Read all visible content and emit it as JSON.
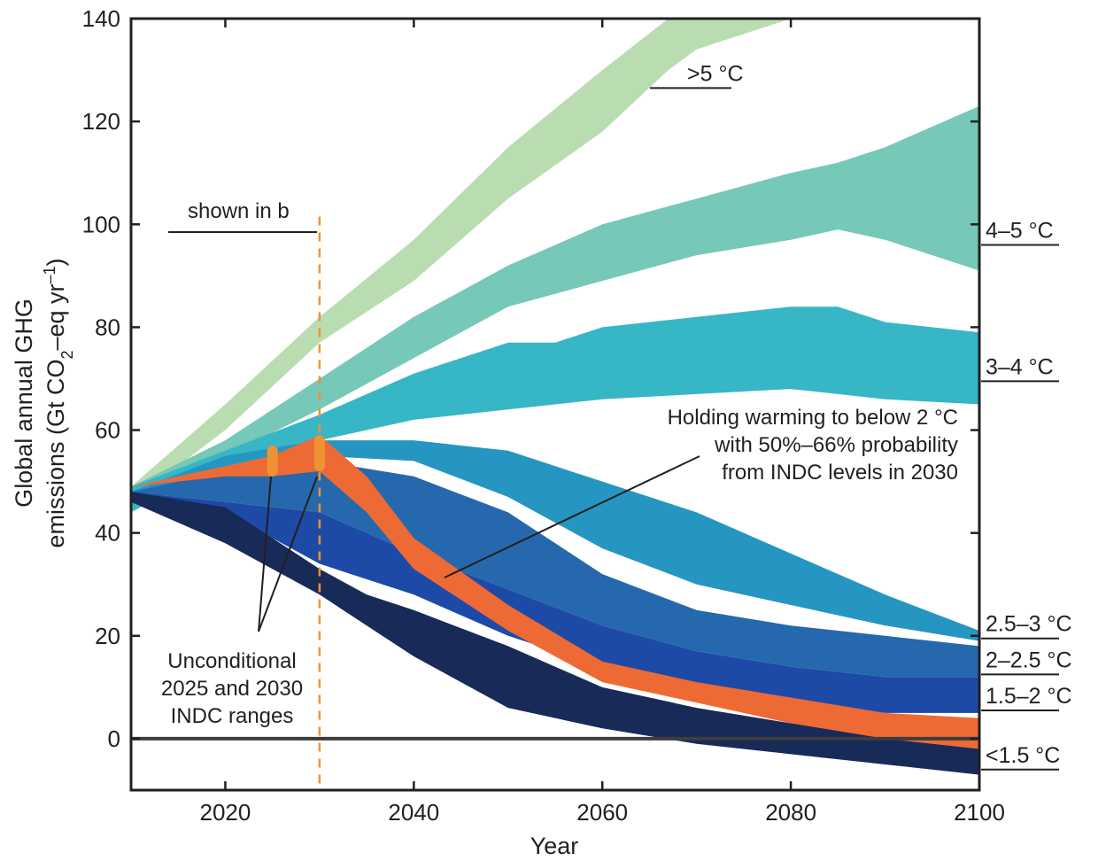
{
  "chart_data": {
    "type": "area",
    "xlabel": "Year",
    "ylabel_line1": "Global annual GHG",
    "ylabel_line2": "emissions (Gt CO",
    "ylabel_sub": "2",
    "ylabel_line2_end": "–eq yr",
    "ylabel_sup": "–1",
    "ylabel_close": ")",
    "xlim": [
      2010,
      2100
    ],
    "ylim": [
      -10,
      140
    ],
    "x_ticks": [
      "2020",
      "2040",
      "2060",
      "2080",
      "2100"
    ],
    "y_ticks": [
      "0",
      "20",
      "40",
      "60",
      "80",
      "100",
      "120",
      "140"
    ],
    "zero_line": true,
    "series": [
      {
        "name": ">5 °C",
        "color": "#b9ddb0",
        "x": [
          2010,
          2020,
          2030,
          2040,
          2050,
          2060,
          2067,
          2070,
          2080,
          2090
        ],
        "upper": [
          49,
          65,
          82,
          97,
          115,
          130,
          140,
          144,
          150,
          155
        ],
        "lower": [
          46,
          60,
          77,
          89,
          105,
          118,
          130,
          134,
          140,
          145
        ]
      },
      {
        "name": "4–5 °C",
        "color": "#76c8b8",
        "x": [
          2010,
          2020,
          2030,
          2040,
          2050,
          2060,
          2070,
          2080,
          2085,
          2090,
          2100
        ],
        "upper": [
          49,
          58,
          70,
          82,
          92,
          100,
          105,
          110,
          112,
          115,
          123
        ],
        "lower": [
          46,
          55,
          64,
          74,
          84,
          89,
          94,
          97,
          99,
          97,
          91
        ]
      },
      {
        "name": "3–4 °C",
        "color": "#37b6c6",
        "x": [
          2010,
          2020,
          2030,
          2040,
          2050,
          2055,
          2060,
          2070,
          2080,
          2085,
          2090,
          2100
        ],
        "upper": [
          49,
          56,
          63,
          71,
          77,
          77,
          80,
          82,
          84,
          84,
          81,
          79
        ],
        "lower": [
          44,
          54,
          58,
          62,
          64,
          65,
          66,
          67,
          68,
          67,
          66,
          65
        ]
      },
      {
        "name": "2.5–3 °C",
        "color": "#2596c1",
        "x": [
          2010,
          2020,
          2030,
          2040,
          2050,
          2060,
          2070,
          2080,
          2090,
          2100
        ],
        "upper": [
          48,
          55,
          58,
          58,
          56,
          50,
          44,
          36,
          28,
          21
        ],
        "lower": [
          47,
          52,
          55,
          54,
          47,
          37,
          30,
          26,
          22,
          19
        ]
      },
      {
        "name": "2–2.5 °C",
        "color": "#2668ad",
        "x": [
          2010,
          2020,
          2030,
          2040,
          2050,
          2060,
          2070,
          2080,
          2090,
          2100
        ],
        "upper": [
          48,
          52,
          54,
          51,
          44,
          32,
          25,
          22,
          20,
          18
        ]
      },
      {
        "name": "1.5–2 °C",
        "color": "#1d4aa6",
        "x": [
          2010,
          2020,
          2030,
          2040,
          2050,
          2060,
          2070,
          2080,
          2090,
          2100
        ],
        "upper": [
          48,
          46,
          44,
          36,
          29,
          22,
          17,
          14,
          12,
          12
        ],
        "lower": [
          47,
          44,
          34,
          28,
          20,
          14,
          10,
          7,
          5,
          5
        ]
      },
      {
        "name": "<1.5 °C",
        "color": "#182a58",
        "x": [
          2010,
          2020,
          2030,
          2035,
          2040,
          2050,
          2060,
          2070,
          2080,
          2090,
          2100
        ],
        "upper": [
          48,
          45,
          33,
          28,
          25,
          18,
          10,
          6,
          3,
          1,
          -2
        ],
        "lower": [
          46,
          38,
          28,
          22,
          16,
          6,
          2,
          -1,
          -3,
          -5,
          -7
        ]
      },
      {
        "name": "Holding warming to below 2 °C with 50%–66% probability from INDC levels in 2030",
        "color": "#ee6a35",
        "x": [
          2010,
          2020,
          2025,
          2030,
          2035,
          2040,
          2050,
          2060,
          2070,
          2080,
          2090,
          2100
        ],
        "upper": [
          49,
          53,
          55,
          59,
          51,
          39,
          26,
          15,
          11,
          8,
          5,
          4
        ],
        "lower": [
          49,
          51,
          51,
          52,
          44,
          33,
          21,
          11,
          7,
          3,
          0,
          -2
        ]
      }
    ],
    "indc_ranges": {
      "color": "#ef9233",
      "ranges": [
        {
          "year": 2025,
          "low": 51,
          "high": 57
        },
        {
          "year": 2030,
          "low": 52,
          "high": 59
        }
      ]
    },
    "ref_line_year": 2030,
    "annotations": {
      "shown": "shown in b",
      "holding": [
        "Holding warming to below 2 °C",
        "with 50%–66% probability",
        "from INDC levels in 2030"
      ],
      "unconditional": [
        "Unconditional",
        "2025 and 2030",
        "INDC ranges"
      ]
    },
    "right_labels": [
      {
        "text": ">5 °C",
        "y": 126.5
      },
      {
        "text": "4–5 °C",
        "y": 96
      },
      {
        "text": "3–4 °C",
        "y": 69.5
      },
      {
        "text": "2.5–3 °C",
        "y": 19.5
      },
      {
        "text": "2–2.5 °C",
        "y": 12.5
      },
      {
        "text": "1.5–2 °C",
        "y": 5.5
      },
      {
        "text": "<1.5 °C",
        "y": -6
      }
    ]
  }
}
